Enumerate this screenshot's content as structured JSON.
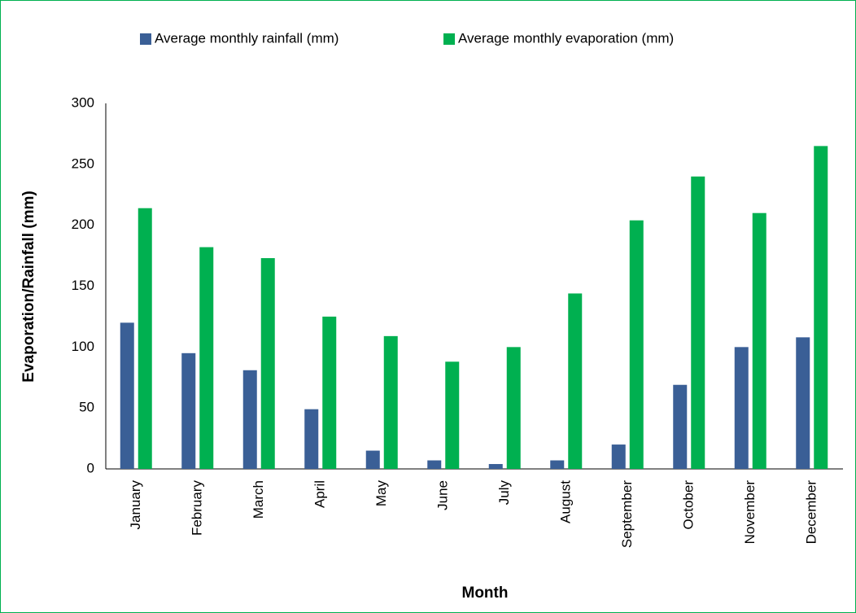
{
  "chart_data": {
    "type": "bar",
    "categories": [
      "January",
      "February",
      "March",
      "April",
      "May",
      "June",
      "July",
      "August",
      "September",
      "October",
      "November",
      "December"
    ],
    "series": [
      {
        "name": "Average monthly rainfall (mm)",
        "color": "#3a5f96",
        "values": [
          120,
          95,
          81,
          49,
          15,
          7,
          4,
          7,
          20,
          69,
          100,
          108
        ]
      },
      {
        "name": "Average monthly evaporation (mm)",
        "color": "#00b050",
        "values": [
          214,
          182,
          173,
          125,
          109,
          88,
          100,
          144,
          204,
          240,
          210,
          265
        ]
      }
    ],
    "x_label": "Month",
    "y_label": "Evaporation/Rainfall (mm)",
    "ylim": [
      0,
      300
    ],
    "yticks": [
      0,
      50,
      100,
      150,
      200,
      250,
      300
    ],
    "grid": false,
    "legend": "top"
  }
}
